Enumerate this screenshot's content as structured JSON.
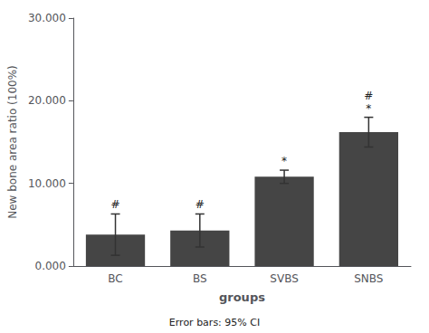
{
  "chart_data": {
    "type": "bar",
    "categories": [
      "BC",
      "BS",
      "SVBS",
      "SNBS"
    ],
    "values": [
      3.8,
      4.3,
      10.8,
      16.2
    ],
    "errors": [
      2.5,
      2.0,
      0.8,
      1.8
    ],
    "color": "#454545",
    "ylim": [
      0,
      30.0
    ],
    "yticks": [
      {
        "value": 0.0,
        "label": "0.000"
      },
      {
        "value": 10.0,
        "label": "10.000"
      },
      {
        "value": 20.0,
        "label": "20.000"
      },
      {
        "value": 30.0,
        "label": "30.000"
      }
    ],
    "ylabel": "New bone area ratio (100%)",
    "xlabel": "groups",
    "footnote": "Error bars: 95% CI",
    "annotations": [
      {
        "x": "BC",
        "text": "#"
      },
      {
        "x": "BS",
        "text": "#"
      },
      {
        "x": "SVBS",
        "text": "*"
      },
      {
        "x": "SNBS",
        "text": "*"
      },
      {
        "x": "SNBS",
        "text": "#"
      }
    ],
    "grid": false
  }
}
